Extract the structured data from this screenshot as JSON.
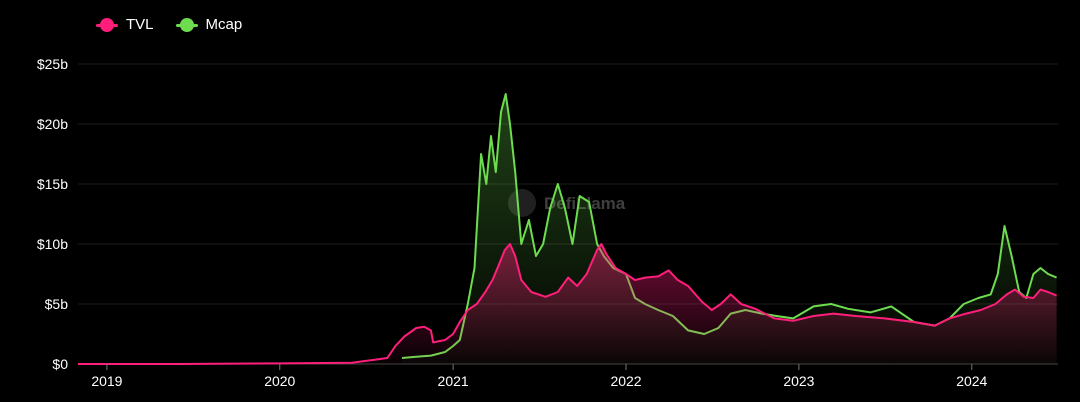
{
  "chart_data": {
    "type": "area",
    "y_axis": {
      "ticks": [
        "$0",
        "$5b",
        "$10b",
        "$15b",
        "$20b",
        "$25b"
      ],
      "ylim": [
        0,
        25
      ]
    },
    "x_axis": {
      "ticks": [
        "2019",
        "2020",
        "2021",
        "2022",
        "2023",
        "2024"
      ],
      "xlim": [
        "2018-11",
        "2024-07"
      ]
    },
    "grid": "horizontal",
    "legend_position": "top-left",
    "watermark": "DefiLlama",
    "series": [
      {
        "name": "TVL",
        "color": "#ff1e7a",
        "points": [
          [
            "2018-11-01",
            0
          ],
          [
            "2019-06-01",
            0
          ],
          [
            "2020-01-01",
            0.05
          ],
          [
            "2020-06-01",
            0.1
          ],
          [
            "2020-08-15",
            0.5
          ],
          [
            "2020-09-01",
            1.5
          ],
          [
            "2020-09-20",
            2.3
          ],
          [
            "2020-10-15",
            3.0
          ],
          [
            "2020-11-01",
            3.1
          ],
          [
            "2020-11-15",
            2.8
          ],
          [
            "2020-11-20",
            1.8
          ],
          [
            "2020-12-15",
            2.0
          ],
          [
            "2021-01-01",
            2.5
          ],
          [
            "2021-01-15",
            3.5
          ],
          [
            "2021-02-01",
            4.5
          ],
          [
            "2021-02-20",
            5.0
          ],
          [
            "2021-03-10",
            6.0
          ],
          [
            "2021-03-25",
            7.0
          ],
          [
            "2021-04-10",
            8.5
          ],
          [
            "2021-04-20",
            9.5
          ],
          [
            "2021-05-01",
            10.0
          ],
          [
            "2021-05-12",
            9.0
          ],
          [
            "2021-05-25",
            7.0
          ],
          [
            "2021-06-15",
            6.0
          ],
          [
            "2021-07-15",
            5.6
          ],
          [
            "2021-08-10",
            6.0
          ],
          [
            "2021-09-01",
            7.2
          ],
          [
            "2021-09-20",
            6.5
          ],
          [
            "2021-10-10",
            7.5
          ],
          [
            "2021-11-01",
            9.5
          ],
          [
            "2021-11-10",
            10.0
          ],
          [
            "2021-11-20",
            9.2
          ],
          [
            "2021-12-10",
            8.0
          ],
          [
            "2022-01-01",
            7.5
          ],
          [
            "2022-01-20",
            7.0
          ],
          [
            "2022-02-10",
            7.2
          ],
          [
            "2022-03-10",
            7.3
          ],
          [
            "2022-04-01",
            7.8
          ],
          [
            "2022-04-20",
            7.0
          ],
          [
            "2022-05-12",
            6.5
          ],
          [
            "2022-06-10",
            5.2
          ],
          [
            "2022-07-01",
            4.5
          ],
          [
            "2022-07-20",
            5.0
          ],
          [
            "2022-08-10",
            5.8
          ],
          [
            "2022-09-01",
            5.0
          ],
          [
            "2022-10-01",
            4.6
          ],
          [
            "2022-11-10",
            3.8
          ],
          [
            "2022-12-20",
            3.6
          ],
          [
            "2023-02-01",
            4.0
          ],
          [
            "2023-03-15",
            4.2
          ],
          [
            "2023-05-01",
            4.0
          ],
          [
            "2023-07-01",
            3.8
          ],
          [
            "2023-09-01",
            3.5
          ],
          [
            "2023-10-15",
            3.2
          ],
          [
            "2023-11-15",
            3.8
          ],
          [
            "2023-12-20",
            4.2
          ],
          [
            "2024-01-20",
            4.5
          ],
          [
            "2024-02-20",
            5.0
          ],
          [
            "2024-03-15",
            5.8
          ],
          [
            "2024-04-01",
            6.2
          ],
          [
            "2024-04-20",
            5.6
          ],
          [
            "2024-05-10",
            5.5
          ],
          [
            "2024-05-25",
            6.2
          ],
          [
            "2024-06-10",
            6.0
          ],
          [
            "2024-06-28",
            5.7
          ]
        ]
      },
      {
        "name": "Mcap",
        "color": "#6ddc4f",
        "points": [
          [
            "2020-09-15",
            0.5
          ],
          [
            "2020-10-15",
            0.6
          ],
          [
            "2020-11-15",
            0.7
          ],
          [
            "2020-12-15",
            1.0
          ],
          [
            "2021-01-01",
            1.5
          ],
          [
            "2021-01-15",
            2.0
          ],
          [
            "2021-02-01",
            5.0
          ],
          [
            "2021-02-15",
            8.0
          ],
          [
            "2021-03-01",
            17.5
          ],
          [
            "2021-03-12",
            15.0
          ],
          [
            "2021-03-22",
            19.0
          ],
          [
            "2021-04-01",
            16.0
          ],
          [
            "2021-04-12",
            21.0
          ],
          [
            "2021-04-22",
            22.5
          ],
          [
            "2021-05-01",
            20.0
          ],
          [
            "2021-05-12",
            16.0
          ],
          [
            "2021-05-25",
            10.0
          ],
          [
            "2021-06-10",
            12.0
          ],
          [
            "2021-06-25",
            9.0
          ],
          [
            "2021-07-10",
            10.0
          ],
          [
            "2021-07-25",
            13.0
          ],
          [
            "2021-08-10",
            15.0
          ],
          [
            "2021-08-25",
            13.0
          ],
          [
            "2021-09-10",
            10.0
          ],
          [
            "2021-09-25",
            14.0
          ],
          [
            "2021-10-15",
            13.5
          ],
          [
            "2021-11-01",
            10.0
          ],
          [
            "2021-11-15",
            9.0
          ],
          [
            "2021-12-05",
            8.0
          ],
          [
            "2022-01-01",
            7.5
          ],
          [
            "2022-01-20",
            5.5
          ],
          [
            "2022-02-10",
            5.0
          ],
          [
            "2022-03-10",
            4.5
          ],
          [
            "2022-04-10",
            4.0
          ],
          [
            "2022-05-12",
            2.8
          ],
          [
            "2022-06-15",
            2.5
          ],
          [
            "2022-07-15",
            3.0
          ],
          [
            "2022-08-10",
            4.2
          ],
          [
            "2022-09-10",
            4.5
          ],
          [
            "2022-10-15",
            4.2
          ],
          [
            "2022-11-15",
            4.0
          ],
          [
            "2022-12-20",
            3.8
          ],
          [
            "2023-02-01",
            4.8
          ],
          [
            "2023-03-10",
            5.0
          ],
          [
            "2023-04-15",
            4.6
          ],
          [
            "2023-06-01",
            4.3
          ],
          [
            "2023-07-15",
            4.8
          ],
          [
            "2023-09-01",
            3.5
          ],
          [
            "2023-10-15",
            3.2
          ],
          [
            "2023-11-15",
            3.8
          ],
          [
            "2023-12-15",
            5.0
          ],
          [
            "2024-01-15",
            5.5
          ],
          [
            "2024-02-10",
            5.8
          ],
          [
            "2024-02-25",
            7.5
          ],
          [
            "2024-03-10",
            11.5
          ],
          [
            "2024-03-25",
            9.0
          ],
          [
            "2024-04-10",
            6.0
          ],
          [
            "2024-04-25",
            5.5
          ],
          [
            "2024-05-10",
            7.5
          ],
          [
            "2024-05-25",
            8.0
          ],
          [
            "2024-06-10",
            7.5
          ],
          [
            "2024-06-28",
            7.2
          ]
        ]
      }
    ]
  }
}
